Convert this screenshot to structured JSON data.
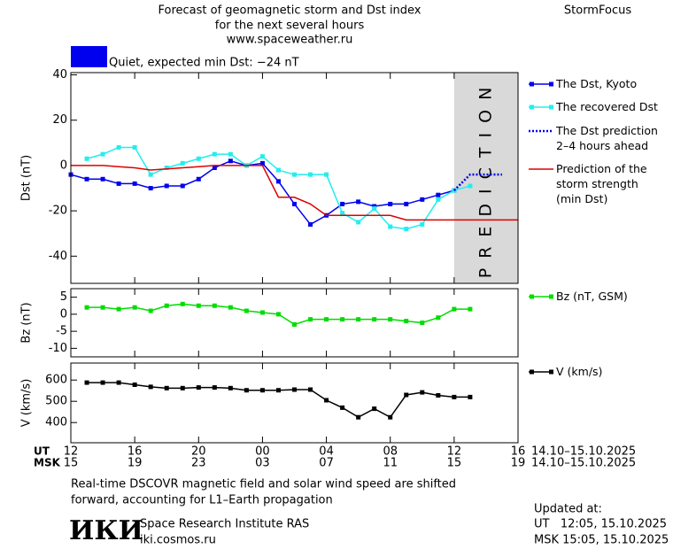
{
  "header": {
    "title_lines": [
      "Forecast of geomagnetic storm and Dst index",
      "for the next several hours",
      "www.spaceweather.ru"
    ],
    "brand": "StormFocus",
    "quiet_label": "Quiet, expected min Dst: −24 nT"
  },
  "time_axis": {
    "xlim": [
      0,
      28
    ],
    "ut_label": "UT",
    "msk_label": "MSK",
    "date_range": "14.10–15.10.2025",
    "ut_ticks": [
      {
        "value": 0,
        "label": "12"
      },
      {
        "value": 4,
        "label": "16"
      },
      {
        "value": 8,
        "label": "20"
      },
      {
        "value": 12,
        "label": "00"
      },
      {
        "value": 16,
        "label": "04"
      },
      {
        "value": 20,
        "label": "08"
      },
      {
        "value": 24,
        "label": "12"
      },
      {
        "value": 28,
        "label": "16"
      }
    ],
    "msk_ticks": [
      {
        "value": 0,
        "label": "15"
      },
      {
        "value": 4,
        "label": "19"
      },
      {
        "value": 8,
        "label": "23"
      },
      {
        "value": 12,
        "label": "03"
      },
      {
        "value": 16,
        "label": "07"
      },
      {
        "value": 20,
        "label": "11"
      },
      {
        "value": 24,
        "label": "15"
      },
      {
        "value": 28,
        "label": "19"
      }
    ]
  },
  "prediction_band": {
    "xlim": [
      24,
      28
    ],
    "label": "PREDICTION"
  },
  "chart_data": [
    {
      "type": "line",
      "ylabel": "Dst (nT)",
      "ylim": [
        -52,
        41
      ],
      "yticks": [
        -40,
        -20,
        0,
        20,
        40
      ],
      "series": [
        {
          "name": "The Dst, Kyoto",
          "color": "#0000ee",
          "marker": "square",
          "x": [
            0,
            1,
            2,
            3,
            4,
            5,
            6,
            7,
            8,
            9,
            10,
            11,
            12,
            13,
            14,
            15,
            16,
            17,
            18,
            19,
            20,
            21,
            22,
            23,
            24
          ],
          "values": [
            -4,
            -6,
            -6,
            -8,
            -8,
            -10,
            -9,
            -9,
            -6,
            -1,
            2,
            0,
            1,
            -7,
            -17,
            -26,
            -22,
            -17,
            -16,
            -18,
            -17,
            -17,
            -15,
            -13,
            -11
          ]
        },
        {
          "name": "The recovered Dst",
          "color": "#22eeee",
          "marker": "square",
          "x": [
            1,
            2,
            3,
            4,
            5,
            6,
            7,
            8,
            9,
            10,
            11,
            12,
            13,
            14,
            15,
            16,
            17,
            18,
            19,
            20,
            21,
            22,
            23,
            24,
            25
          ],
          "values": [
            3,
            5,
            8,
            8,
            -4,
            -1,
            1,
            3,
            5,
            5,
            0,
            4,
            -2,
            -4,
            -4,
            -4,
            -21,
            -25,
            -19,
            -27,
            -28,
            -26,
            -15,
            -11,
            -9
          ]
        },
        {
          "name": "The Dst prediction\n2–4 hours ahead",
          "color": "#0000ee",
          "dash": "dotted",
          "x": [
            24,
            25,
            27
          ],
          "values": [
            -11,
            -4,
            -4
          ]
        },
        {
          "name": "Prediction of the\nstorm strength\n(min Dst)",
          "color": "#dd0000",
          "x": [
            0,
            1,
            2,
            3,
            4,
            5,
            6,
            7,
            8,
            9,
            10,
            11,
            12,
            13,
            14,
            15,
            16,
            17,
            18,
            19,
            20,
            21,
            22,
            23,
            24,
            25,
            26,
            27,
            28
          ],
          "values": [
            0,
            0,
            0,
            -0.5,
            -1,
            -2,
            -1.5,
            -1,
            -0.5,
            0,
            0,
            0,
            0,
            -14,
            -14,
            -17,
            -22,
            -22,
            -22,
            -22,
            -22,
            -24,
            -24,
            -24,
            -24,
            -24,
            -24,
            -24,
            -24
          ]
        }
      ]
    },
    {
      "type": "line",
      "ylabel": "Bz (nT)",
      "ylim": [
        -12.5,
        7.5
      ],
      "yticks": [
        5,
        0,
        -5,
        -10
      ],
      "series": [
        {
          "name": "Bz (nT, GSM)",
          "color": "#00dd00",
          "marker": "square",
          "x": [
            1,
            2,
            3,
            4,
            5,
            6,
            7,
            8,
            9,
            10,
            11,
            12,
            13,
            14,
            15,
            16,
            17,
            18,
            19,
            20,
            21,
            22,
            23,
            24,
            25
          ],
          "values": [
            2,
            2,
            1.5,
            2,
            1,
            2.5,
            3,
            2.5,
            2.5,
            2,
            1,
            0.5,
            0,
            -3,
            -1.5,
            -1.5,
            -1.5,
            -1.5,
            -1.5,
            -1.5,
            -2,
            -2.5,
            -1,
            1.5,
            1.5
          ]
        }
      ]
    },
    {
      "type": "line",
      "ylabel": "V (km/s)",
      "ylim": [
        305,
        680
      ],
      "yticks": [
        400,
        500,
        600
      ],
      "series": [
        {
          "name": "V (km/s)",
          "color": "#000000",
          "marker": "square",
          "x": [
            1,
            2,
            3,
            4,
            5,
            6,
            7,
            8,
            9,
            10,
            11,
            12,
            13,
            14,
            15,
            16,
            17,
            18,
            19,
            20,
            21,
            22,
            23,
            24,
            25
          ],
          "values": [
            588,
            588,
            588,
            578,
            568,
            562,
            562,
            565,
            565,
            562,
            552,
            552,
            552,
            555,
            555,
            505,
            470,
            425,
            465,
            425,
            530,
            542,
            528,
            520,
            520
          ]
        }
      ]
    }
  ],
  "footer": {
    "note_lines": [
      "Real-time DSCOVR magnetic field and solar wind speed are shifted",
      "forward, accounting for L1–Earth propagation"
    ],
    "logo": "ИКИ",
    "institute": "Space Research Institute RAS",
    "website": "iki.cosmos.ru",
    "updated_label": "Updated at:",
    "updated_ut": "UT   12:05, 15.10.2025",
    "updated_msk": "MSK 15:05, 15.10.2025"
  }
}
